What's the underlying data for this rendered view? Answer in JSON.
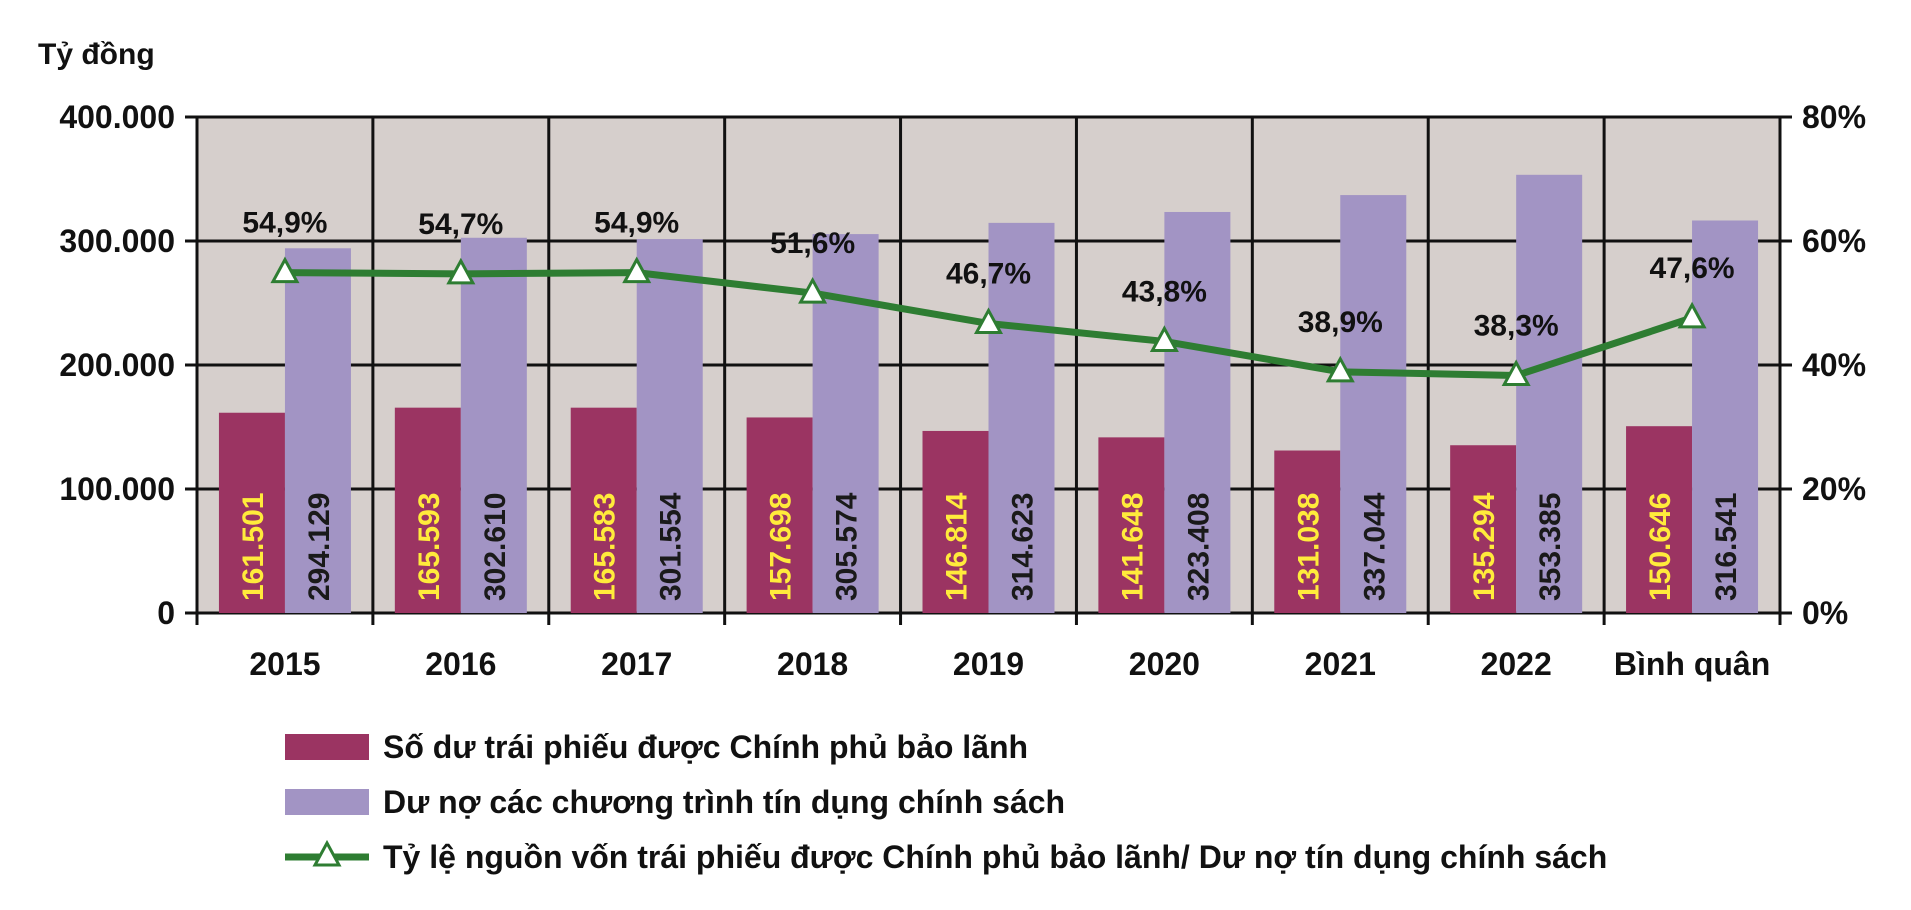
{
  "chart_data": {
    "type": "bar",
    "categories": [
      "2015",
      "2016",
      "2017",
      "2018",
      "2019",
      "2020",
      "2021",
      "2022",
      "Bình quân"
    ],
    "series": [
      {
        "name": "Số dư trái phiếu được Chính phủ bảo lãnh",
        "kind": "bar",
        "color": "#9b3462",
        "label_color": "#ffeb3b",
        "values": [
          161501,
          165593,
          165583,
          157698,
          146814,
          141648,
          131038,
          135294,
          150646
        ],
        "labels": [
          "161.501",
          "165.593",
          "165.583",
          "157.698",
          "146.814",
          "141.648",
          "131.038",
          "135.294",
          "150.646"
        ]
      },
      {
        "name": "Dư nợ các chương trình tín dụng chính sách",
        "kind": "bar",
        "color": "#a294c4",
        "label_color": "#1a1a1a",
        "values": [
          294129,
          302610,
          301554,
          305574,
          314623,
          323408,
          337044,
          353385,
          316541
        ],
        "labels": [
          "294.129",
          "302.610",
          "301.554",
          "305.574",
          "314.623",
          "323.408",
          "337.044",
          "353.385",
          "316.541"
        ]
      },
      {
        "name": "Tỷ lệ nguồn vốn trái phiếu được Chính phủ bảo lãnh/ Dư nợ tín dụng chính sách",
        "kind": "line",
        "axis": "right",
        "color": "#2e7d32",
        "values": [
          54.9,
          54.7,
          54.9,
          51.6,
          46.7,
          43.8,
          38.9,
          38.3,
          47.6
        ],
        "labels": [
          "54,9%",
          "54,7%",
          "54,9%",
          "51,6%",
          "46,7%",
          "43,8%",
          "38,9%",
          "38,3%",
          "47,6%"
        ]
      }
    ],
    "ylabel": "Tỷ đồng",
    "ylim": [
      0,
      400000
    ],
    "yticks": [
      "0",
      "100.000",
      "200.000",
      "300.000",
      "400.000"
    ],
    "y2lim": [
      0,
      80
    ],
    "y2ticks": [
      "0%",
      "20%",
      "40%",
      "60%",
      "80%"
    ],
    "plot_background": "#d6cfcc",
    "grid": true,
    "legend_position": "bottom"
  }
}
